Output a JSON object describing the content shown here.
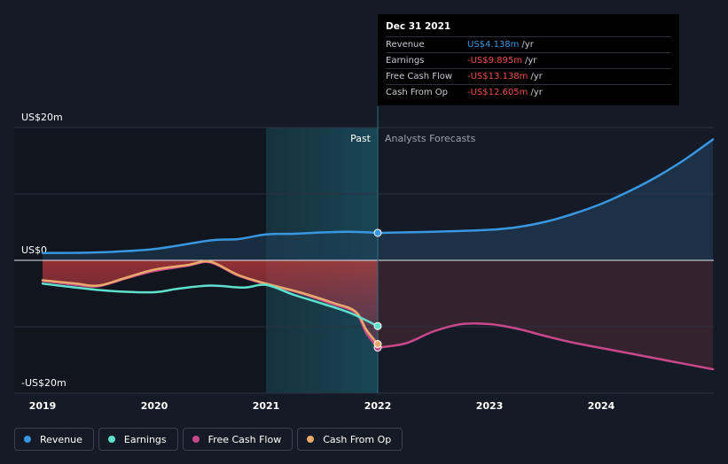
{
  "chart_data": {
    "type": "line",
    "x_ticks": [
      "2019",
      "2020",
      "2021",
      "2022",
      "2023",
      "2024"
    ],
    "y_ticks": [
      "US$20m",
      "US$0",
      "-US$20m"
    ],
    "ylim": [
      -20,
      20
    ],
    "xlim": [
      2019,
      2025
    ],
    "split_labels": {
      "past": "Past",
      "forecast": "Analysts Forecasts"
    },
    "series": [
      {
        "name": "Revenue",
        "color": "#3897e0",
        "points": [
          [
            2019.0,
            1.1
          ],
          [
            2019.5,
            1.2
          ],
          [
            2020.0,
            1.7
          ],
          [
            2020.5,
            3.0
          ],
          [
            2020.75,
            3.2
          ],
          [
            2021.0,
            3.9
          ],
          [
            2021.25,
            4.0
          ],
          [
            2021.5,
            4.2
          ],
          [
            2021.75,
            4.3
          ],
          [
            2022.0,
            4.138
          ]
        ],
        "forecast": [
          [
            2022.0,
            4.138
          ],
          [
            2022.5,
            4.3
          ],
          [
            2023.0,
            4.6
          ],
          [
            2023.25,
            5.0
          ],
          [
            2023.5,
            5.8
          ],
          [
            2023.75,
            7.0
          ],
          [
            2024.0,
            8.5
          ],
          [
            2024.25,
            10.4
          ],
          [
            2024.5,
            12.6
          ],
          [
            2024.75,
            15.2
          ],
          [
            2025.0,
            18.2
          ]
        ]
      },
      {
        "name": "Earnings",
        "color": "#5ee0cd",
        "points": [
          [
            2019.0,
            -3.5
          ],
          [
            2019.3,
            -4.1
          ],
          [
            2019.6,
            -4.6
          ],
          [
            2020.0,
            -4.8
          ],
          [
            2020.2,
            -4.3
          ],
          [
            2020.5,
            -3.8
          ],
          [
            2020.8,
            -4.1
          ],
          [
            2021.0,
            -3.7
          ],
          [
            2021.25,
            -5.2
          ],
          [
            2021.5,
            -6.5
          ],
          [
            2021.75,
            -7.9
          ],
          [
            2022.0,
            -9.895
          ]
        ]
      },
      {
        "name": "Free Cash Flow",
        "color": "#c9488b",
        "points": [
          [
            2019.0,
            -3.1
          ],
          [
            2019.3,
            -3.7
          ],
          [
            2019.5,
            -3.9
          ],
          [
            2019.75,
            -2.7
          ],
          [
            2020.0,
            -1.6
          ],
          [
            2020.3,
            -0.8
          ],
          [
            2020.5,
            -0.3
          ],
          [
            2020.75,
            -2.3
          ],
          [
            2021.0,
            -3.6
          ],
          [
            2021.3,
            -4.9
          ],
          [
            2021.6,
            -6.6
          ],
          [
            2021.8,
            -7.9
          ],
          [
            2021.9,
            -11.0
          ],
          [
            2022.0,
            -13.138
          ]
        ],
        "forecast": [
          [
            2022.0,
            -13.138
          ],
          [
            2022.25,
            -12.5
          ],
          [
            2022.5,
            -10.7
          ],
          [
            2022.75,
            -9.6
          ],
          [
            2023.0,
            -9.6
          ],
          [
            2023.25,
            -10.3
          ],
          [
            2023.5,
            -11.4
          ],
          [
            2023.75,
            -12.4
          ],
          [
            2024.0,
            -13.2
          ],
          [
            2024.5,
            -14.8
          ],
          [
            2025.0,
            -16.4
          ]
        ]
      },
      {
        "name": "Cash From Op",
        "color": "#e8a96b",
        "points": [
          [
            2019.0,
            -3.0
          ],
          [
            2019.3,
            -3.5
          ],
          [
            2019.5,
            -3.8
          ],
          [
            2019.75,
            -2.6
          ],
          [
            2020.0,
            -1.4
          ],
          [
            2020.3,
            -0.7
          ],
          [
            2020.5,
            -0.2
          ],
          [
            2020.75,
            -2.2
          ],
          [
            2021.0,
            -3.5
          ],
          [
            2021.3,
            -4.8
          ],
          [
            2021.6,
            -6.4
          ],
          [
            2021.8,
            -7.7
          ],
          [
            2021.9,
            -10.5
          ],
          [
            2022.0,
            -12.605
          ]
        ]
      }
    ]
  },
  "tooltip": {
    "date": "Dec 31 2021",
    "rows": [
      {
        "label": "Revenue",
        "value": "US$4.138m",
        "unit": "/yr",
        "color": "#3897e0"
      },
      {
        "label": "Earnings",
        "value": "-US$9.895m",
        "unit": "/yr",
        "color": "#ea4f4f"
      },
      {
        "label": "Free Cash Flow",
        "value": "-US$13.138m",
        "unit": "/yr",
        "color": "#ea4f4f"
      },
      {
        "label": "Cash From Op",
        "value": "-US$12.605m",
        "unit": "/yr",
        "color": "#ea4f4f"
      }
    ]
  },
  "legend": [
    {
      "label": "Revenue",
      "color": "#3897e0"
    },
    {
      "label": "Earnings",
      "color": "#5ee0cd"
    },
    {
      "label": "Free Cash Flow",
      "color": "#c9488b"
    },
    {
      "label": "Cash From Op",
      "color": "#e8a96b"
    }
  ]
}
